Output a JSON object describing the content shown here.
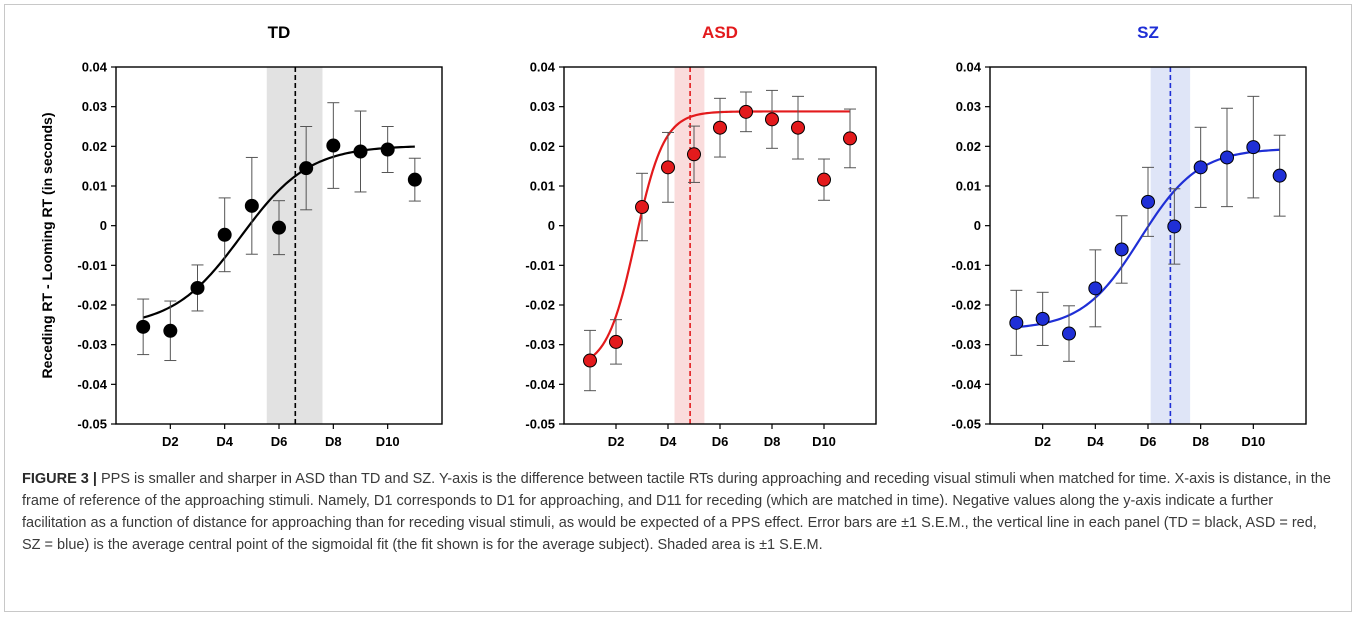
{
  "chart_data": [
    {
      "type": "scatter",
      "title": "TD",
      "title_color": "#000000",
      "ylabel": "Receding RT - Looming RT (in seconds)",
      "xlabel": "",
      "x": [
        1,
        2,
        3,
        4,
        5,
        6,
        7,
        8,
        9,
        10,
        11
      ],
      "y": [
        -0.0255,
        -0.0265,
        -0.0157,
        -0.0023,
        0.005,
        -0.0005,
        0.0145,
        0.0202,
        0.0187,
        0.0192,
        0.0116
      ],
      "err": [
        0.007,
        0.0075,
        0.0058,
        0.0093,
        0.0122,
        0.0068,
        0.0105,
        0.0108,
        0.0102,
        0.0058,
        0.0054
      ],
      "fit": {
        "low": -0.0256,
        "high": 0.0202,
        "center": 4.6,
        "slope": 1.25
      },
      "center_line": 6.6,
      "shade": [
        5.55,
        7.6
      ],
      "color": "#000000",
      "shade_color": "#e2e2e2",
      "ylim": [
        -0.05,
        0.04
      ],
      "xlim": [
        0,
        12
      ],
      "y_ticks": [
        "0.04",
        "0.03",
        "0.02",
        "0.01",
        "0",
        "-0.01",
        "-0.02",
        "-0.03",
        "-0.04",
        "-0.05"
      ],
      "x_ticks": [
        "D2",
        "D4",
        "D6",
        "D8",
        "D10"
      ]
    },
    {
      "type": "scatter",
      "title": "ASD",
      "title_color": "#e31a1c",
      "ylabel": "",
      "xlabel": "",
      "x": [
        1,
        2,
        3,
        4,
        5,
        6,
        7,
        8,
        9,
        10,
        11
      ],
      "y": [
        -0.034,
        -0.0293,
        0.0047,
        0.0147,
        0.018,
        0.0247,
        0.0287,
        0.0268,
        0.0247,
        0.0116,
        0.022
      ],
      "err": [
        0.0076,
        0.0056,
        0.0085,
        0.0088,
        0.0071,
        0.0074,
        0.005,
        0.0073,
        0.0079,
        0.0052,
        0.0074
      ],
      "fit": {
        "low": -0.036,
        "high": 0.0288,
        "center": 2.75,
        "slope": 0.55
      },
      "center_line": 4.85,
      "shade": [
        4.25,
        5.4
      ],
      "color": "#e31a1c",
      "shade_color": "#fadcdc",
      "ylim": [
        -0.05,
        0.04
      ],
      "xlim": [
        0,
        12
      ],
      "y_ticks": [
        "0.04",
        "0.03",
        "0.02",
        "0.01",
        "0",
        "-0.01",
        "-0.02",
        "-0.03",
        "-0.04",
        "-0.05"
      ],
      "x_ticks": [
        "D2",
        "D4",
        "D6",
        "D8",
        "D10"
      ]
    },
    {
      "type": "scatter",
      "title": "SZ",
      "title_color": "#1f2fd6",
      "ylabel": "",
      "xlabel": "",
      "x": [
        1,
        2,
        3,
        4,
        5,
        6,
        7,
        8,
        9,
        10,
        11
      ],
      "y": [
        -0.0245,
        -0.0235,
        -0.0272,
        -0.0158,
        -0.006,
        0.006,
        -0.0002,
        0.0147,
        0.0172,
        0.0198,
        0.0126
      ],
      "err": [
        0.0082,
        0.0067,
        0.007,
        0.0097,
        0.0085,
        0.0087,
        0.0095,
        0.0101,
        0.0124,
        0.0128,
        0.0102
      ],
      "fit": {
        "low": -0.0262,
        "high": 0.0195,
        "center": 5.7,
        "slope": 1.1
      },
      "center_line": 6.85,
      "shade": [
        6.1,
        7.6
      ],
      "color": "#1f2fd6",
      "shade_color": "#dfe5f7",
      "ylim": [
        -0.05,
        0.04
      ],
      "xlim": [
        0,
        12
      ],
      "y_ticks": [
        "0.04",
        "0.03",
        "0.02",
        "0.01",
        "0",
        "-0.01",
        "-0.02",
        "-0.03",
        "-0.04",
        "-0.05"
      ],
      "x_ticks": [
        "D2",
        "D4",
        "D6",
        "D8",
        "D10"
      ]
    }
  ],
  "caption": {
    "label": "FIGURE 3 |",
    "text": "PPS is smaller and sharper in ASD than TD and SZ. Y-axis is the difference between tactile RTs during approaching and receding visual stimuli when matched for time. X-axis is distance, in the frame of reference of the approaching stimuli. Namely, D1 corresponds to D1 for approaching, and D11 for receding (which are matched in time). Negative values along the y-axis indicate a further facilitation as a function of distance for approaching than for receding visual stimuli, as would be expected of a PPS effect. Error bars are ±1 S.E.M., the vertical line in each panel (TD = black, ASD = red, SZ = blue) is the average central point of the sigmoidal fit (the fit shown is for the average subject). Shaded area is ±1 S.E.M."
  }
}
